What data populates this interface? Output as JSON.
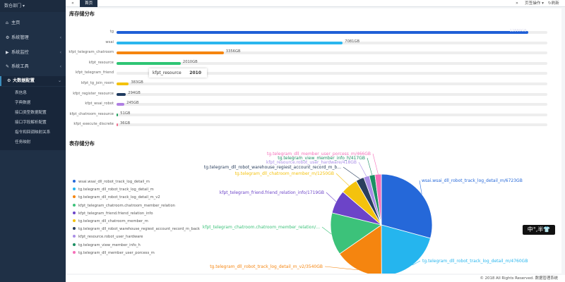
{
  "sidebar": {
    "dept": "数仓部门",
    "items": [
      {
        "label": "主页",
        "icon": "home-icon"
      },
      {
        "label": "系统管理",
        "icon": "gear-icon"
      },
      {
        "label": "系统监控",
        "icon": "video-icon"
      },
      {
        "label": "系统工具",
        "icon": "wrench-icon"
      },
      {
        "label": "大数据配置",
        "icon": "cogs-icon"
      }
    ],
    "subitems": [
      "表信息",
      "字典数据",
      "接口类型数据配置",
      "接口字段解析配置",
      "指令和回调映射关系",
      "任务映射"
    ]
  },
  "topbar": {
    "back": "«",
    "home_tab": "首页",
    "forward": "»",
    "page_ops": "页签操作",
    "refresh": "刷新"
  },
  "storage_title": "库存储分布",
  "table_title": "表存储分布",
  "chart_data": [
    {
      "type": "bar",
      "title": "库存储分布",
      "categories": [
        "tg",
        "wsai",
        "kfpt_telegram_chatroom",
        "kfpt_resource",
        "kfpt_telegram_friend",
        "kfpt_tg_join_room",
        "kfpt_register_resource",
        "kfpt_wsai_robot",
        "kfpt_chatroom_resource",
        "kfpt_execute_discrete"
      ],
      "values": [
        12880,
        7081,
        3356,
        2010,
        0,
        383,
        294,
        245,
        51,
        36
      ],
      "labels": [
        "12880GB",
        "7081GB",
        "3356GB",
        "2010GB",
        "",
        "383GB",
        "294GB",
        "245GB",
        "51GB",
        "36GB"
      ],
      "colors": [
        "#1f5fd6",
        "#2bb6ee",
        "#f5850f",
        "#2ec574",
        "#6e48c9",
        "#f4c20d",
        "#1f3a5f",
        "#b07fe3",
        "#1fa35f",
        "#f26f8e"
      ],
      "tooltip": {
        "name": "kfpt_resource",
        "value": "2010"
      }
    },
    {
      "type": "pie",
      "title": "表存储分布",
      "slices": [
        {
          "name": "wsai.wsai_dll_robot_track_log_detail_m",
          "value": 6723,
          "label": "wsai.wsai_dll_robot_track_log_detail_m/6723GB",
          "color": "#2568d9"
        },
        {
          "name": "tg.telegram_dll_robot_track_log_detail_m",
          "value": 4760,
          "label": "tg.telegram_dll_robot_track_log_detail_m/4760GB",
          "color": "#25b5ee"
        },
        {
          "name": "tg.telegram_dll_robot_track_log_detail_m_v2",
          "value": 3540,
          "label": "tg.telegram_dll_robot_track_log_detail_m_v2/3540GB",
          "color": "#f5850f"
        },
        {
          "name": "kfpt_telegram_chatroom.chatroom_member_relation",
          "value": 3100,
          "label": "kfpt_telegram_chatroom.chatroom_member_relation/...",
          "color": "#3cc27a"
        },
        {
          "name": "kfpt_telegram_friend.friend_relation_info",
          "value": 1719,
          "label": "kfpt_telegram_friend.friend_relation_info/1719GB",
          "color": "#6c44c8"
        },
        {
          "name": "tg.telegram_dll_chatroom_member_m",
          "value": 1250,
          "label": "tg.telegram_dll_chatroom_member_m/1250GB",
          "color": "#f4c20d"
        },
        {
          "name": "tg.telegram_dll_robot_warehouse_regiest_account_record_m_back",
          "value": 600,
          "label": "tg.telegram_dll_robot_warehouse_regiest_account_record_m_b...",
          "color": "#2a3f5e"
        },
        {
          "name": "kfpt_resource.robot_user_hardware",
          "value": 418,
          "label": "kfpt_resource.robot_user_hardware/418GB",
          "color": "#a98ee6"
        },
        {
          "name": "tg.telegram_view_member_info_h",
          "value": 417,
          "label": "tg.telegram_view_member_info_h/417GB",
          "color": "#1b8f63"
        },
        {
          "name": "tg.telegram_dll_member_user_porcess_m",
          "value": 466,
          "label": "tg.telegram_dll_member_user_porcess_m/466GB",
          "color": "#f56fb9"
        }
      ]
    }
  ],
  "legend": [
    "wsai.wsai_dll_robot_track_log_detail_m",
    "tg.telegram_dll_robot_track_log_detail_m",
    "tg.telegram_dll_robot_track_log_detail_m_v2",
    "kfpt_telegram_chatroom.chatroom_member_relation",
    "kfpt_telegram_friend.friend_relation_info",
    "tg.telegram_dll_chatroom_member_m",
    "tg.telegram_dll_robot_warehouse_regiest_account_record_m_back",
    "kfpt_resource.robot_user_hardware",
    "tg.telegram_view_member_info_h",
    "tg.telegram_dll_member_user_porcess_m"
  ],
  "ime": "中°,半👕",
  "footer": "© 2018 All Rights Reserved. 数据管理系统"
}
